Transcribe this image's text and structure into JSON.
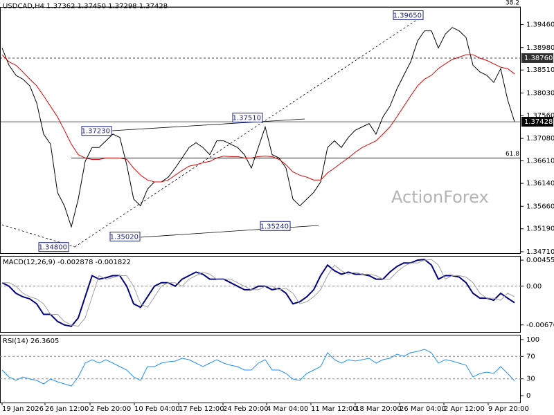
{
  "chart_data": [
    {
      "type": "line",
      "title": "USDCAD,H4  1.37362 1.37450 1.37298 1.37428",
      "watermark": "ActionForex",
      "x": [
        0,
        1,
        2,
        3,
        4,
        5,
        6,
        7,
        8,
        9,
        10,
        11,
        12,
        13,
        14,
        15,
        16,
        17,
        18,
        19,
        20,
        21,
        22,
        23,
        24,
        25,
        26,
        27,
        28,
        29,
        30,
        31,
        32,
        33,
        34,
        35,
        36,
        37,
        38,
        39,
        40,
        41,
        42,
        43,
        44,
        45,
        46,
        47,
        48,
        49,
        50,
        51,
        52,
        53,
        54,
        55,
        56,
        57,
        58,
        59,
        60,
        61,
        62,
        63,
        64,
        65,
        66,
        67,
        68,
        69,
        70,
        71,
        72,
        73,
        74
      ],
      "xlim": [
        -0.3,
        74.9
      ],
      "xticks": [
        {
          "value": 0,
          "label": "19 Jan 2026"
        },
        {
          "value": 6.2,
          "label": "26 Jan 12:00"
        },
        {
          "value": 12.7,
          "label": "2 Feb 20:00"
        },
        {
          "value": 19.1,
          "label": "10 Feb 04:00"
        },
        {
          "value": 25.5,
          "label": "17 Feb 12:00"
        },
        {
          "value": 31.9,
          "label": "24 Feb 20:00"
        },
        {
          "value": 38.2,
          "label": "4 Mar 04:00"
        },
        {
          "value": 44.6,
          "label": "11 Mar 12:00"
        },
        {
          "value": 51,
          "label": "18 Mar 20:00"
        },
        {
          "value": 57.4,
          "label": "26 Mar 04:00"
        },
        {
          "value": 63.8,
          "label": "2 Apr 12:00"
        },
        {
          "value": 70.2,
          "label": "9 Apr 20:00"
        }
      ],
      "ylim": [
        1.3468,
        1.3983
      ],
      "yticks": [
        {
          "value": 1.3946,
          "label": "1.39460"
        },
        {
          "value": 1.3898,
          "label": "1.38980"
        },
        {
          "value": 1.3851,
          "label": "1.38510"
        },
        {
          "value": 1.3803,
          "label": "1.38030"
        },
        {
          "value": 1.3756,
          "label": "1.37560"
        },
        {
          "value": 1.3708,
          "label": "1.37080"
        },
        {
          "value": 1.3661,
          "label": "1.36610"
        },
        {
          "value": 1.3614,
          "label": "1.36140"
        },
        {
          "value": 1.3566,
          "label": "1.35660"
        },
        {
          "value": 1.3519,
          "label": "1.35190"
        },
        {
          "value": 1.3471,
          "label": "1.34710"
        }
      ],
      "series": [
        {
          "color": "#000000",
          "values": [
            1.3897,
            1.3861,
            1.384,
            1.3832,
            1.3818,
            1.3782,
            1.3717,
            1.3696,
            1.3595,
            1.3567,
            1.3523,
            1.3581,
            1.366,
            1.3689,
            1.3689,
            1.3703,
            1.3717,
            1.371,
            1.3653,
            1.3581,
            1.3567,
            1.3602,
            1.3617,
            1.3617,
            1.3627,
            1.3646,
            1.3667,
            1.3689,
            1.3699,
            1.3689,
            1.3674,
            1.3703,
            1.3703,
            1.3696,
            1.3689,
            1.3674,
            1.3646,
            1.3689,
            1.3732,
            1.3674,
            1.3667,
            1.3646,
            1.3581,
            1.3567,
            1.3581,
            1.3595,
            1.3617,
            1.3689,
            1.3703,
            1.3689,
            1.371,
            1.3725,
            1.3732,
            1.3739,
            1.3717,
            1.3753,
            1.3775,
            1.3811,
            1.384,
            1.3868,
            1.3912,
            1.3933,
            1.3933,
            1.3897,
            1.3926,
            1.394,
            1.3933,
            1.3919,
            1.3861,
            1.3847,
            1.384,
            1.3825,
            1.3854,
            1.3789,
            1.3743
          ]
        },
        {
          "color": "#e00000",
          "values": [
            1.3883,
            1.3868,
            1.3861,
            1.3847,
            1.3832,
            1.3818,
            1.3797,
            1.3775,
            1.3753,
            1.3725,
            1.3696,
            1.3674,
            1.3667,
            1.3664,
            1.3664,
            1.3667,
            1.3667,
            1.3667,
            1.3664,
            1.3646,
            1.3631,
            1.3621,
            1.3617,
            1.3617,
            1.3621,
            1.3631,
            1.3641,
            1.365,
            1.3653,
            1.3657,
            1.366,
            1.3667,
            1.3671,
            1.367,
            1.367,
            1.3667,
            1.3667,
            1.367,
            1.3671,
            1.367,
            1.3664,
            1.3653,
            1.3638,
            1.3631,
            1.3627,
            1.3621,
            1.3621,
            1.3636,
            1.3646,
            1.3657,
            1.3667,
            1.3679,
            1.3689,
            1.3696,
            1.3703,
            1.3717,
            1.3732,
            1.3753,
            1.3775,
            1.3797,
            1.3818,
            1.3832,
            1.384,
            1.3854,
            1.3864,
            1.3873,
            1.3878,
            1.3883,
            1.3883,
            1.3876,
            1.3871,
            1.3864,
            1.3857,
            1.3854,
            1.3843
          ]
        }
      ],
      "annotations": [
        {
          "label": "1.39650",
          "value": 1.3965,
          "x": 60.9
        },
        {
          "label": "1.37510",
          "value": 1.3751,
          "x": 37.7
        },
        {
          "label": "1.37230",
          "value": 1.3723,
          "x": 15.9
        },
        {
          "label": "1.35240",
          "value": 1.3524,
          "x": 41.7
        },
        {
          "label": "1.35020",
          "value": 1.3502,
          "x": 20.0
        },
        {
          "label": "1.34800",
          "value": 1.348,
          "x": 9.7
        }
      ],
      "fib_levels": [
        {
          "label": "38.2",
          "value": 1.3983
        },
        {
          "label": "61.8",
          "value": 1.3667
        }
      ],
      "price_labels": [
        {
          "value": 1.3876,
          "label": "1.38760",
          "color": "#303030"
        },
        {
          "value": 1.37428,
          "label": "1.37428",
          "color": "#000000"
        }
      ]
    },
    {
      "type": "line",
      "title": "MACD(12,26,9) -0.002878 -0.001822",
      "ylim": [
        -0.008,
        0.00529
      ],
      "yticks": [
        0.004552,
        {
          "value": 0,
          "label": "0.00"
        },
        -0.006764
      ],
      "zero_line": true,
      "series": [
        {
          "color": "#000080",
          "values": [
            0.00062,
            0,
            -0.00123,
            -0.00185,
            -0.00221,
            -0.00308,
            -0.00492,
            -0.00492,
            -0.00615,
            -0.00677,
            -0.00701,
            -0.00554,
            -0.00185,
            0.00185,
            0.00123,
            0.00148,
            0.00185,
            0.00185,
            0,
            -0.00308,
            -0.00369,
            -0.00185,
            0,
            0.00062,
            0.00062,
            0,
            0.00123,
            0.00185,
            0.00246,
            0.00209,
            0.00123,
            0.00123,
            0.00123,
            0.00062,
            0,
            -0.00062,
            -0.00062,
            0,
            0,
            -0.00062,
            -0.00037,
            -0.00123,
            -0.00308,
            -0.00271,
            -0.00185,
            -0.00062,
            0.00185,
            0.00369,
            0.00271,
            0.00209,
            0.00246,
            0.00209,
            0.00209,
            0.00185,
            0.00123,
            0.00123,
            0.00246,
            0.00344,
            0.00406,
            0.00406,
            0.00455,
            0.00467,
            0.00369,
            0.00123,
            0.00185,
            0.00185,
            0.0016,
            0.00062,
            -0.00123,
            -0.00209,
            -0.00209,
            -0.00246,
            -0.00123,
            -0.00209,
            -0.00288
          ]
        },
        {
          "color": "#a0a0a0",
          "values": [
            0.00062,
            0.00062,
            0,
            -0.00123,
            -0.00185,
            -0.00221,
            -0.00308,
            -0.00492,
            -0.00492,
            -0.00615,
            -0.00677,
            -0.00701,
            -0.00554,
            -0.00185,
            0.00185,
            0.00123,
            0.00148,
            0.00185,
            0.00185,
            0,
            -0.00308,
            -0.00369,
            -0.00185,
            0,
            0.00062,
            0.00062,
            0,
            0.00123,
            0.00185,
            0.00246,
            0.00209,
            0.00123,
            0.00123,
            0.00123,
            0.00062,
            0,
            -0.00062,
            -0.00062,
            0,
            0,
            -0.00062,
            -0.00037,
            -0.00123,
            -0.00308,
            -0.00271,
            -0.00185,
            -0.00062,
            0.00185,
            0.00369,
            0.00271,
            0.00209,
            0.00246,
            0.00209,
            0.00209,
            0.00185,
            0.00123,
            0.00123,
            0.00246,
            0.00344,
            0.00406,
            0.00406,
            0.00455,
            0.00467,
            0.00369,
            0.00123,
            0.00185,
            0.00185,
            0.0016,
            0.00062,
            -0.00123,
            -0.00209,
            -0.00209,
            -0.00246,
            -0.00123,
            -0.00182
          ]
        }
      ]
    },
    {
      "type": "line",
      "title": "RSI(14) 26.3605",
      "ylim": [
        -12.3,
        108.6
      ],
      "yticks": [
        100,
        70,
        30,
        0
      ],
      "dashed_levels": [
        70,
        30
      ],
      "series": [
        {
          "color": "#1e90ff",
          "values": [
            45.7,
            33.3,
            27.2,
            33.3,
            29.6,
            27.2,
            21,
            29.6,
            24.7,
            21,
            17.3,
            33.3,
            58,
            64.2,
            58,
            64.2,
            58,
            51.9,
            45.7,
            33.3,
            27.2,
            51.9,
            51.9,
            58,
            60.5,
            61.7,
            66.7,
            64.2,
            58,
            51.9,
            58,
            64.2,
            58,
            54.3,
            51.9,
            45.7,
            45.7,
            58,
            64.2,
            45.7,
            45.7,
            39.5,
            29.6,
            27.2,
            39.5,
            45.7,
            51.9,
            76.5,
            64.2,
            58,
            64.2,
            61.7,
            64.2,
            66.7,
            58,
            64.2,
            66.7,
            74.1,
            70.4,
            76.5,
            79,
            82.7,
            76.5,
            58,
            64.2,
            61.7,
            58,
            54.3,
            33.3,
            39.5,
            42,
            39.5,
            51.9,
            39.5,
            26.4
          ]
        }
      ]
    }
  ]
}
